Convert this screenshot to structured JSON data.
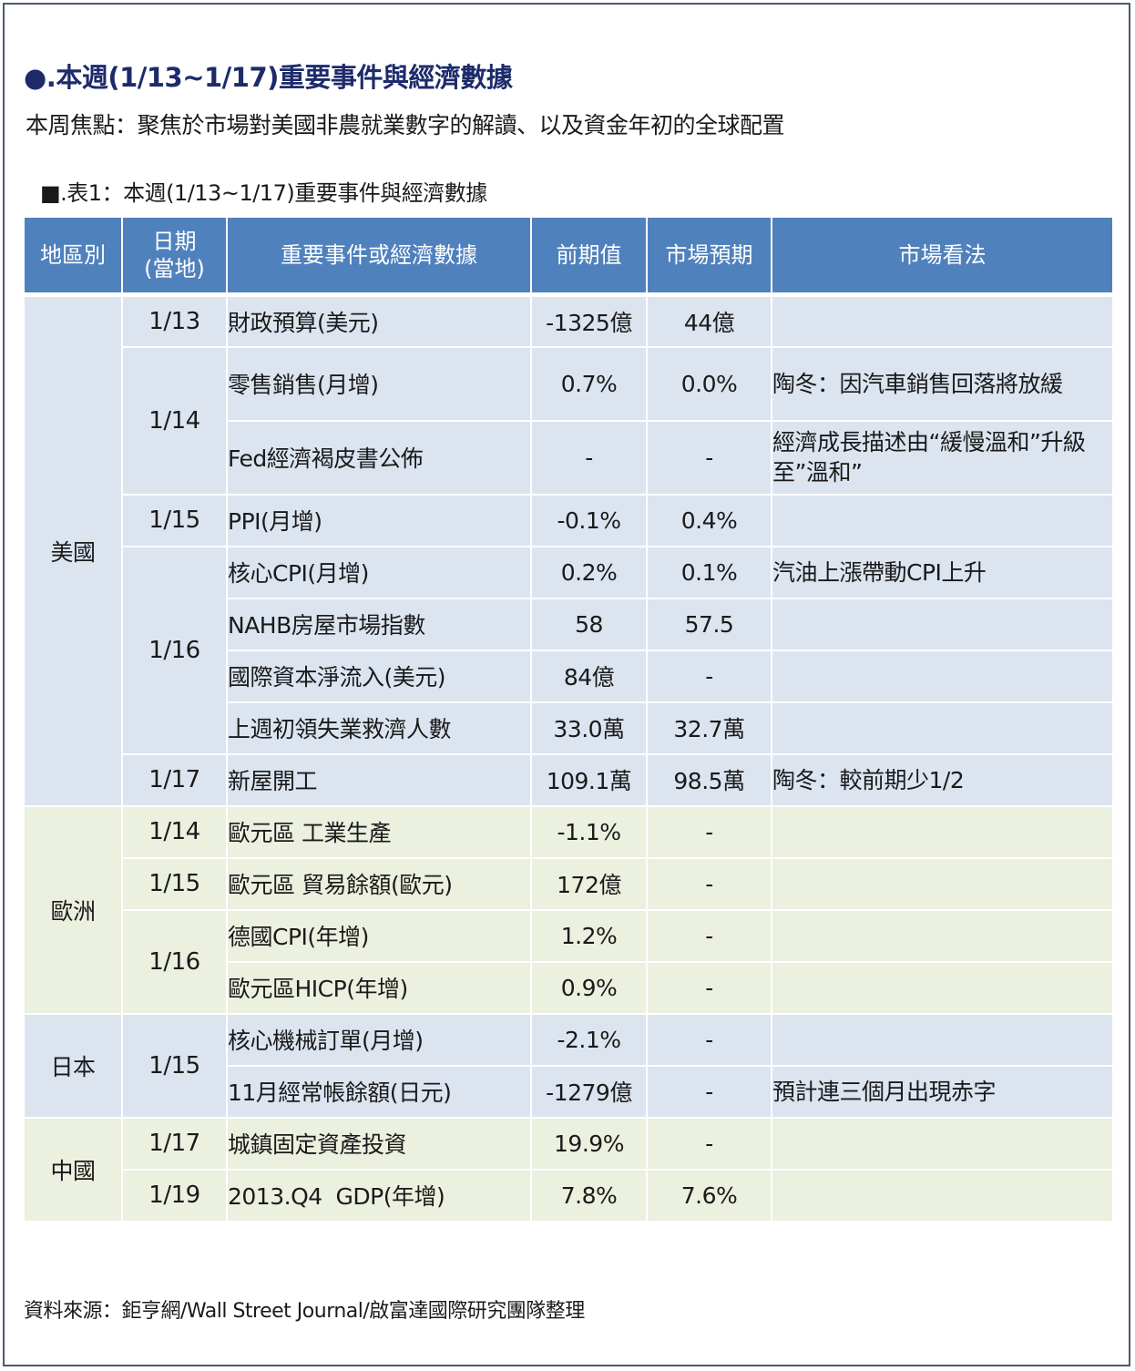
{
  "heading": "●.本週(1/13~1/17)重要事件與經濟數據",
  "focus": "本周焦點：聚焦於市場對美國非農就業數字的解讀、以及資金年初的全球配置",
  "caption": "■.表1：本週(1/13~1/17)重要事件與經濟數據",
  "headers": {
    "region": "地區別",
    "date": "日期\n(當地)",
    "event": "重要事件或經濟數據",
    "previous": "前期值",
    "expected": "市場預期",
    "view": "市場看法"
  },
  "regions": {
    "us": "美國",
    "eu": "歐洲",
    "jp": "日本",
    "cn": "中國"
  },
  "rows": [
    {
      "date": "1/13",
      "event": "財政預算(美元)",
      "previous": "-1325億",
      "expected": "44億",
      "view": ""
    },
    {
      "date": "1/14",
      "event": "零售銷售(月增)",
      "previous": "0.7%",
      "expected": "0.0%",
      "view": "陶冬：因汽車銷售回落將放緩"
    },
    {
      "date": "",
      "event": "Fed經濟褐皮書公佈",
      "previous": "-",
      "expected": "-",
      "view": "經濟成長描述由“緩慢溫和”升級至”溫和”"
    },
    {
      "date": "1/15",
      "event": "PPI(月增)",
      "previous": "-0.1%",
      "expected": "0.4%",
      "view": ""
    },
    {
      "date": "1/16",
      "event": "核心CPI(月增)",
      "previous": "0.2%",
      "expected": "0.1%",
      "view": "汽油上漲帶動CPI上升"
    },
    {
      "date": "",
      "event": "NAHB房屋市場指數",
      "previous": "58",
      "expected": "57.5",
      "view": ""
    },
    {
      "date": "",
      "event": "國際資本淨流入(美元)",
      "previous": "84億",
      "expected": "-",
      "view": ""
    },
    {
      "date": "",
      "event": "上週初領失業救濟人數",
      "previous": "33.0萬",
      "expected": "32.7萬",
      "view": ""
    },
    {
      "date": "1/17",
      "event": "新屋開工",
      "previous": "109.1萬",
      "expected": "98.5萬",
      "view": "陶冬：較前期少1/2"
    },
    {
      "date": "1/14",
      "event": "歐元區 工業生產",
      "previous": "-1.1%",
      "expected": "-",
      "view": ""
    },
    {
      "date": "1/15",
      "event": "歐元區 貿易餘額(歐元)",
      "previous": "172億",
      "expected": "-",
      "view": ""
    },
    {
      "date": "1/16",
      "event": "德國CPI(年增)",
      "previous": "1.2%",
      "expected": "-",
      "view": ""
    },
    {
      "date": "",
      "event": "歐元區HICP(年增)",
      "previous": "0.9%",
      "expected": "-",
      "view": ""
    },
    {
      "date": "1/15",
      "event": "核心機械訂單(月增)",
      "previous": "-2.1%",
      "expected": "-",
      "view": ""
    },
    {
      "date": "",
      "event": "11月經常帳餘額(日元)",
      "previous": "-1279億",
      "expected": "-",
      "view": "預計連三個月出現赤字"
    },
    {
      "date": "1/17",
      "event": "城鎮固定資產投資",
      "previous": "19.9%",
      "expected": "-",
      "view": ""
    },
    {
      "date": "1/19",
      "event": "2013.Q4  GDP(年增)",
      "previous": "7.8%",
      "expected": "7.6%",
      "view": ""
    }
  ],
  "source": "資料來源：鉅亨網/Wall Street Journal/啟富達國際研究團隊整理",
  "colors": {
    "header_bg": "#4f81bd",
    "us_bg": "#dce4f0",
    "eu_bg": "#ebf0df",
    "heading": "#1d2b6b"
  }
}
